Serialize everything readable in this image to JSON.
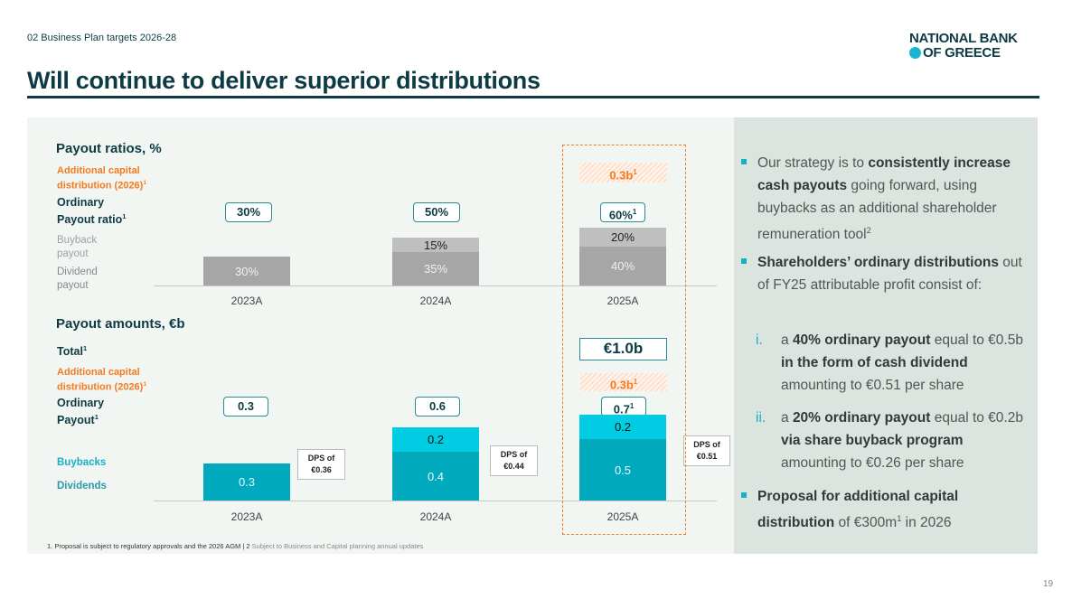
{
  "header": {
    "section": "02 Business Plan targets 2026-28",
    "title": "Will continue to deliver superior distributions",
    "logo_line1": "NATIONAL BANK",
    "logo_line2": "OF GREECE"
  },
  "ratios": {
    "title": "Payout ratios, %",
    "additional_label": "Additional capital distribution (2026)",
    "ordinary_label_1": "Ordinary",
    "ordinary_label_2": "Payout ratio",
    "buyback_label": "Buyback payout",
    "dividend_label": "Dividend payout",
    "totals": [
      "30%",
      "50%",
      "60%"
    ],
    "additional_2025": "0.3b"
  },
  "amounts": {
    "title": "Payout amounts, €b",
    "total_label": "Total",
    "total_2025": "€1.0b",
    "additional_label": "Additional capital distribution (2026)",
    "ordinary_label_1": "Ordinary",
    "ordinary_label_2": "Payout",
    "buybacks_label": "Buybacks",
    "dividends_label": "Dividends",
    "totals": [
      "0.3",
      "0.6",
      "0.7"
    ],
    "additional_2025": "0.3b",
    "dps": [
      "DPS of €0.36",
      "DPS of €0.44",
      "DPS of €0.51"
    ]
  },
  "chart_data": [
    {
      "type": "bar",
      "title": "Payout ratios, %",
      "categories": [
        "2023A",
        "2024A",
        "2025A"
      ],
      "series": [
        {
          "name": "Dividend payout",
          "values": [
            30,
            35,
            40
          ],
          "labels": [
            "30%",
            "35%",
            "40%"
          ],
          "color": "#a6a6a6"
        },
        {
          "name": "Buyback payout",
          "values": [
            0,
            15,
            20
          ],
          "labels": [
            "",
            "15%",
            "20%"
          ],
          "color": "#bfbfbf"
        }
      ]
    },
    {
      "type": "bar",
      "title": "Payout amounts, €b",
      "categories": [
        "2023A",
        "2024A",
        "2025A"
      ],
      "series": [
        {
          "name": "Dividends",
          "values": [
            0.3,
            0.4,
            0.5
          ],
          "labels": [
            "0.3",
            "0.4",
            "0.5"
          ],
          "color": "#00a9bb"
        },
        {
          "name": "Buybacks",
          "values": [
            0,
            0.2,
            0.2
          ],
          "labels": [
            "",
            "0.2",
            "0.2"
          ],
          "color": "#00cde3"
        }
      ]
    }
  ],
  "bullets": {
    "b1": {
      "t1": "Our strategy is to ",
      "b1": "consistently increase cash payouts",
      "t2": " going forward, using buybacks as an additional shareholder remuneration tool"
    },
    "b2": {
      "b1": "Shareholders’ ordinary distributions",
      "t1": " out of FY25 attributable profit consist of:"
    },
    "i": {
      "num": "i.",
      "t1": "a ",
      "b1": "40% ordinary payout",
      "t2": " equal to €0.5b ",
      "b2": "in the form of cash dividend",
      "t3": " amounting to €0.51 per share"
    },
    "ii": {
      "num": "ii.",
      "t1": "a ",
      "b1": "20% ordinary payout",
      "t2": " equal to €0.2b ",
      "b2": "via share buyback program",
      "t3": " amounting to €0.26 per share"
    },
    "b3": {
      "b1": "Proposal for additional capital distribution",
      "t1": " of €300m",
      "t2": " in 2026"
    }
  },
  "footnote": {
    "part1": "1. Proposal is subject to regulatory approvals and the 2026 AGM | 2 ",
    "part2": "Subject to Business and Capital planning annual updates"
  },
  "page_number": "19",
  "sup": {
    "one": "1",
    "two": "2"
  }
}
